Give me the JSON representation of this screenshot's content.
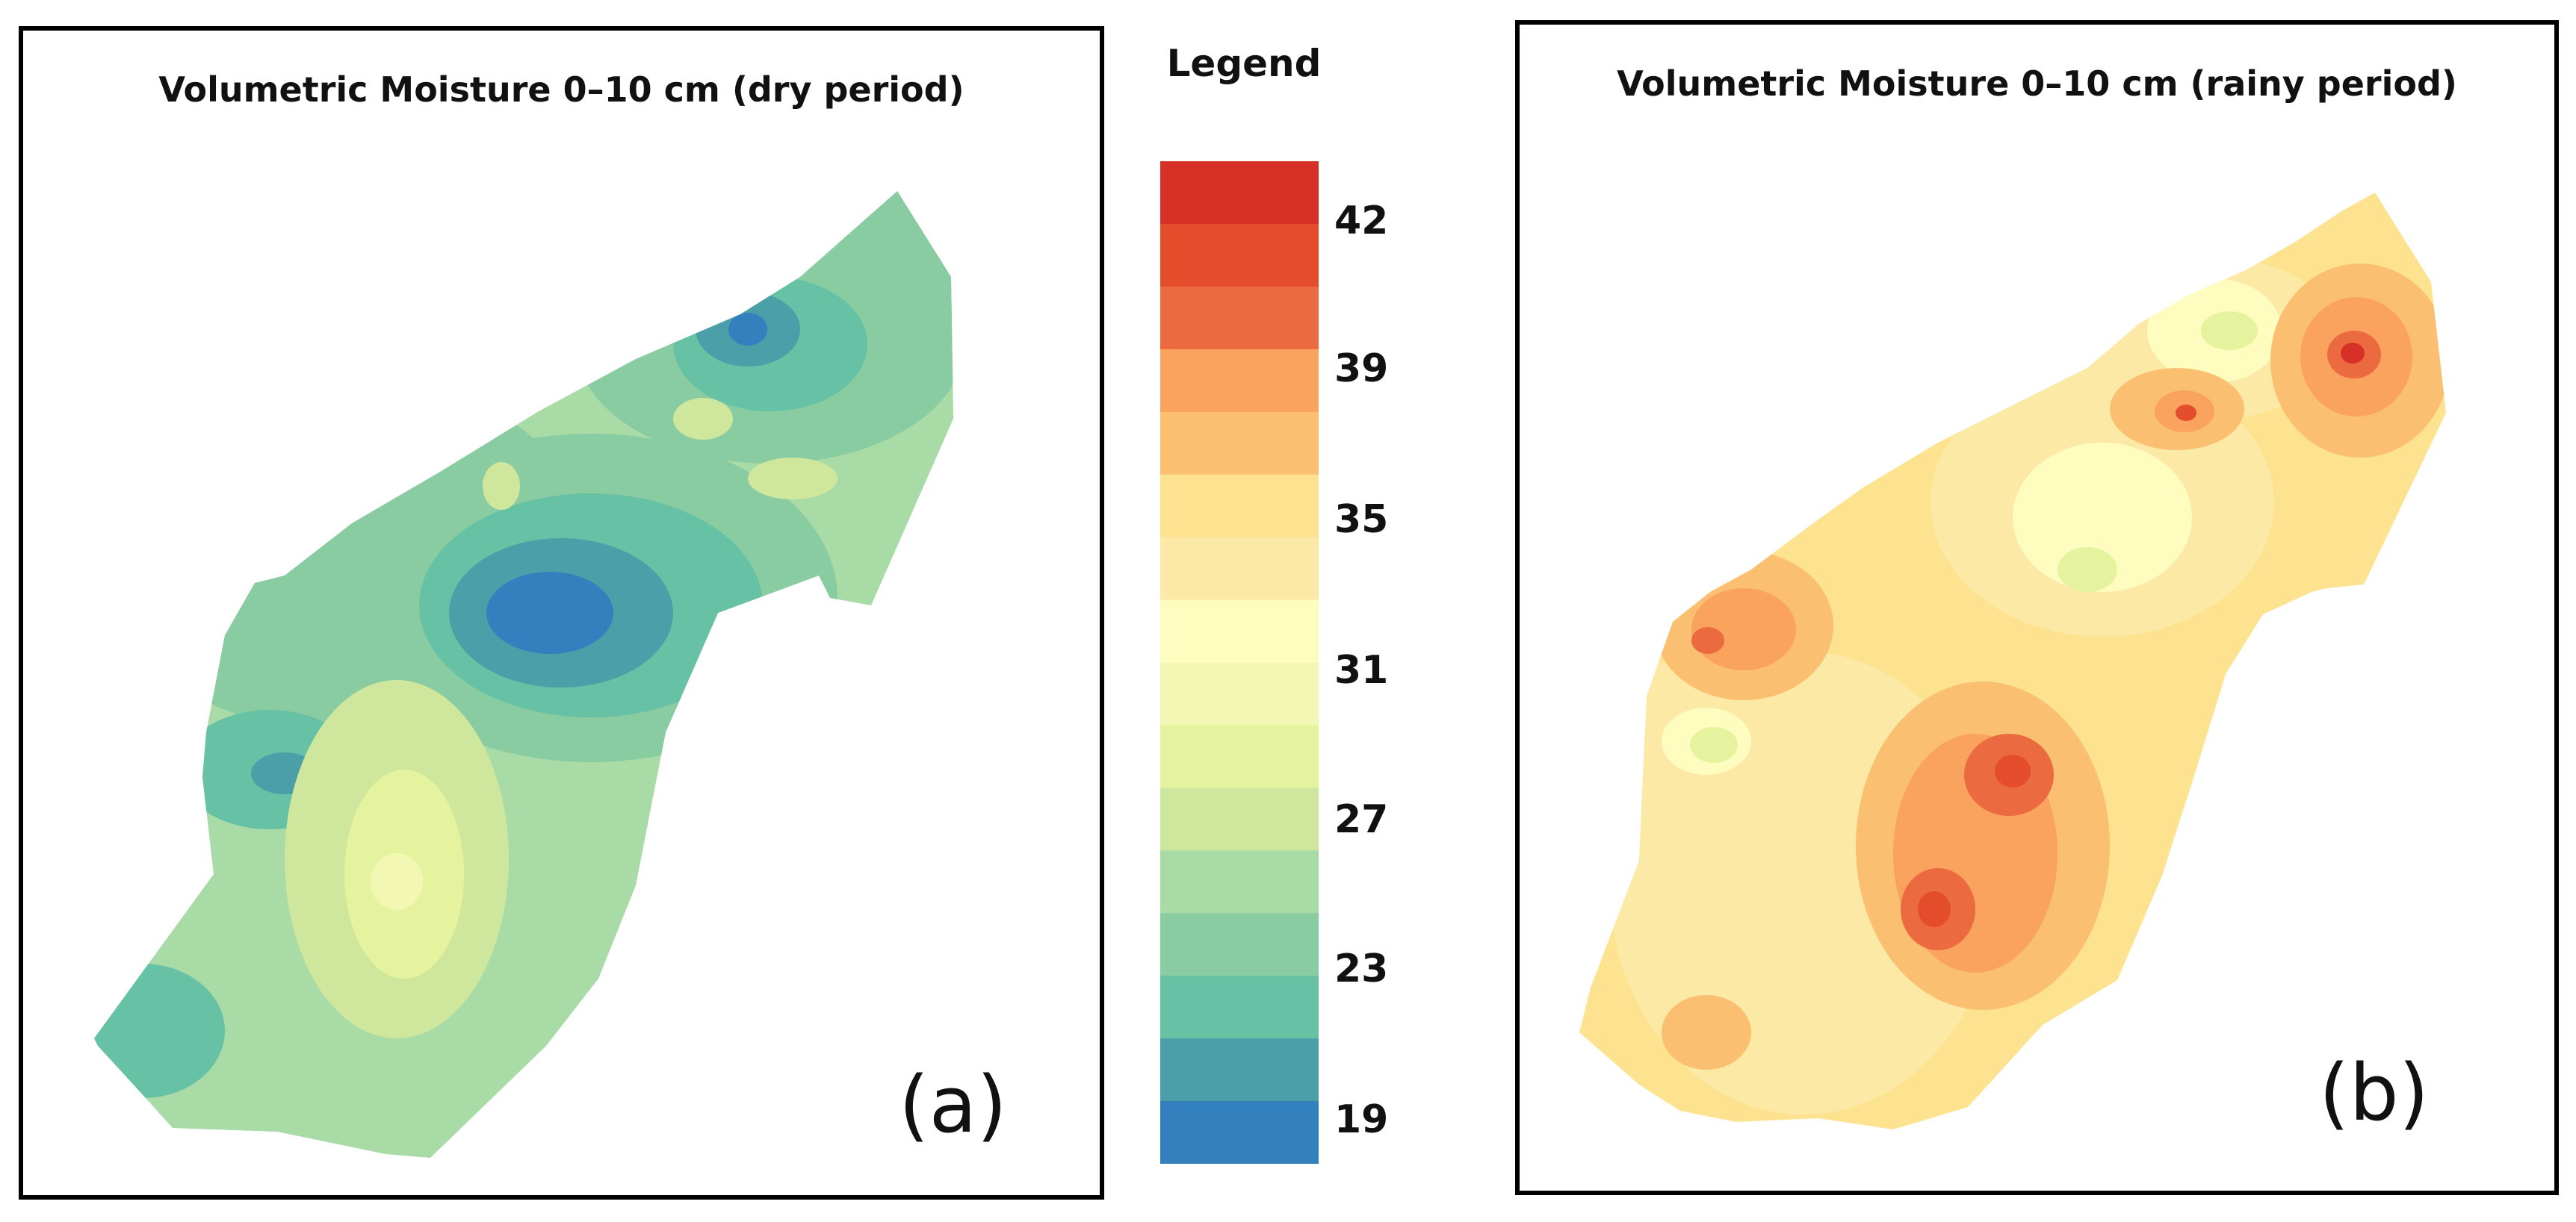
{
  "panels": {
    "a": {
      "title": "Volumetric Moisture 0–10 cm (dry period)",
      "label": "(a)"
    },
    "b": {
      "title": "Volumetric Moisture 0–10 cm (rainy period)",
      "label": "(b)"
    }
  },
  "legend": {
    "title": "Legend",
    "ticks": [
      "42",
      "39",
      "35",
      "31",
      "27",
      "23",
      "19"
    ],
    "classes_top_to_bottom": [
      "#d73027",
      "#e44d2c",
      "#ec6a40",
      "#f9a35f",
      "#fbbf72",
      "#fde28f",
      "#fce9a6",
      "#fefdbf",
      "#f2f7b3",
      "#e5f39e",
      "#cee79c",
      "#a9dba6",
      "#8acca1",
      "#66c1a5",
      "#4a9fa8",
      "#3380be"
    ]
  },
  "colors": {
    "frame": "#000000",
    "background": "#ffffff"
  }
}
